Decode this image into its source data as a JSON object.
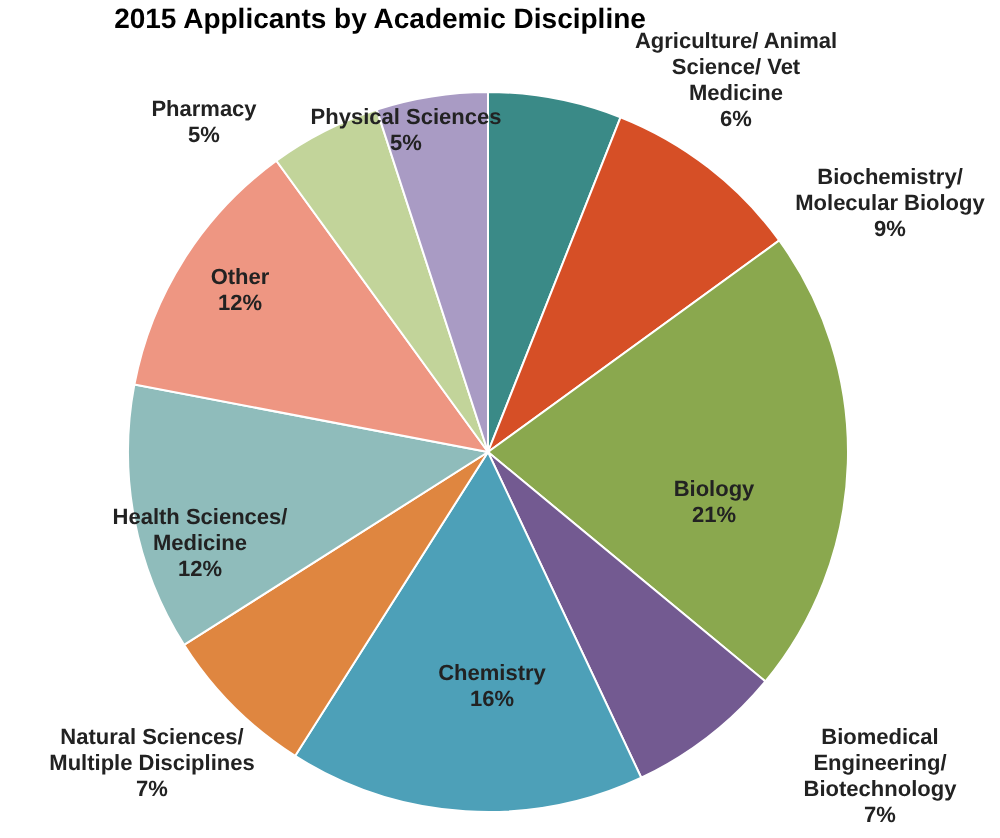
{
  "chart_data": {
    "type": "pie",
    "title": "2015 Applicants by Academic Discipline",
    "categories": [
      "Agriculture/ Animal Science/ Vet Medicine",
      "Biochemistry/ Molecular Biology",
      "Biology",
      "Biomedical Engineering/ Biotechnology",
      "Chemistry",
      "Natural Sciences/ Multiple Disciplines",
      "Health Sciences/ Medicine",
      "Other",
      "Pharmacy",
      "Physical Sciences"
    ],
    "values": [
      6,
      9,
      21,
      7,
      16,
      7,
      12,
      12,
      5,
      5
    ],
    "value_labels": [
      "6%",
      "9%",
      "21%",
      "7%",
      "16%",
      "7%",
      "12%",
      "12%",
      "5%",
      "5%"
    ],
    "colors": [
      "#3a8a87",
      "#d64f26",
      "#8aa84e",
      "#735a91",
      "#4da0b8",
      "#df8640",
      "#8fbcbb",
      "#ee9682",
      "#c2d49a",
      "#a99bc4"
    ],
    "legend": false
  }
}
